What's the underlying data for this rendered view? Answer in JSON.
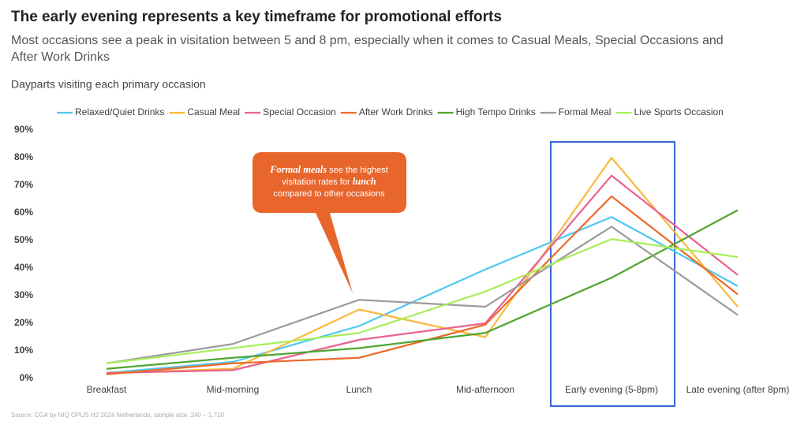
{
  "chart_data": {
    "type": "line",
    "title": "The early evening represents a key timeframe for promotional efforts",
    "subtitle_lines": [
      "Most occasions see a peak in visitation between 5 and 8 pm, especially when it comes to Casual Meals, Special Occasions and",
      "After Work Drinks"
    ],
    "y_label": "Dayparts visiting each primary occasion",
    "source": "Source: CGA by NIQ OPUS H2 2024 Netherlands, sample size: 240 – 1,710",
    "categories": [
      "Breakfast",
      "Mid-morning",
      "Lunch",
      "Mid-afternoon",
      "Early evening (5-8pm)",
      "Late evening (after 8pm)"
    ],
    "ylim": [
      0,
      90
    ],
    "yticks": [
      {
        "value": 0,
        "label": "0%"
      },
      {
        "value": 10,
        "label": "10%"
      },
      {
        "value": 20,
        "label": "20%"
      },
      {
        "value": 30,
        "label": "30%"
      },
      {
        "value": 40,
        "label": "40%"
      },
      {
        "value": 50,
        "label": "50%"
      },
      {
        "value": 60,
        "label": "60%"
      },
      {
        "value": 70,
        "label": "70%"
      },
      {
        "value": 80,
        "label": "80%"
      },
      {
        "value": 90,
        "label": "90%"
      }
    ],
    "grid": false,
    "legend": "top",
    "series": [
      {
        "name": "Relaxed/Quiet Drinks",
        "color": "#4fc8ef",
        "values": [
          2,
          6,
          19,
          39.5,
          58.5,
          33.5
        ]
      },
      {
        "name": "Casual Meal",
        "color": "#f9b93b",
        "values": [
          2,
          3.5,
          25,
          15,
          80,
          26
        ]
      },
      {
        "name": "Special Occasion",
        "color": "#e9628f",
        "values": [
          2,
          3,
          14,
          20,
          73.5,
          37.5
        ]
      },
      {
        "name": "After Work Drinks",
        "color": "#ec6a2c",
        "values": [
          1.5,
          5.5,
          7.5,
          19.5,
          66,
          30.5
        ]
      },
      {
        "name": "High Tempo Drinks",
        "color": "#4fa532",
        "values": [
          3.5,
          7.5,
          11,
          16.5,
          36.5,
          61
        ]
      },
      {
        "name": "Formal Meal",
        "color": "#9b9b9b",
        "values": [
          5.5,
          12.5,
          28.5,
          26,
          55,
          23
        ]
      },
      {
        "name": "Live Sports Occasion",
        "color": "#a8ee5a",
        "values": [
          5.5,
          11,
          16.5,
          31.5,
          50.5,
          44
        ]
      }
    ],
    "annotation": {
      "lines": [
        [
          "Formal meals",
          " see the highest"
        ],
        [
          "visitation rates for ",
          "lunch"
        ],
        [
          "compared to other occasions"
        ]
      ]
    }
  }
}
